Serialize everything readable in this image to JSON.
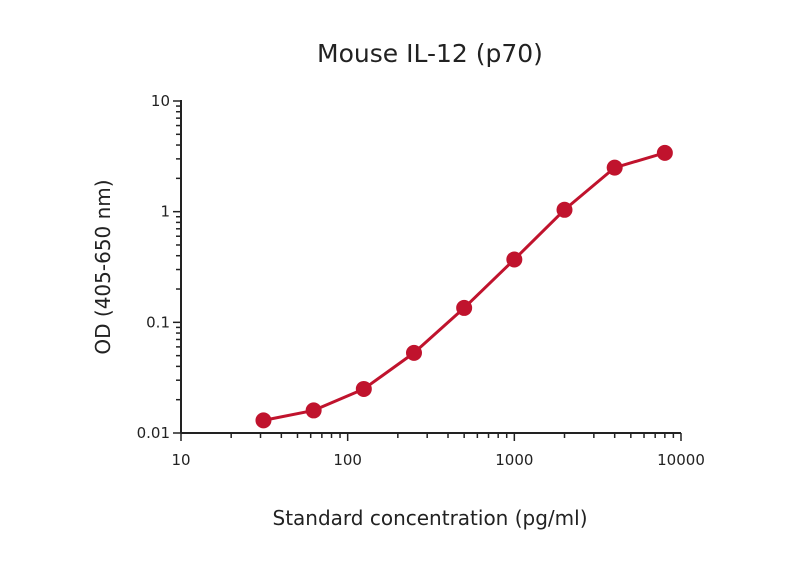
{
  "chart_data": {
    "type": "line",
    "title": "Mouse IL-12 (p70)",
    "xlabel": "Standard concentration (pg/ml)",
    "ylabel": "OD (405-650 nm)",
    "xscale": "log",
    "yscale": "log",
    "xlim": [
      10,
      10000
    ],
    "ylim": [
      0.01,
      10
    ],
    "x_tick_labels": [
      "10",
      "100",
      "1000",
      "10000"
    ],
    "y_tick_labels": [
      "0.01",
      "0.1",
      "1",
      "10"
    ],
    "grid": false,
    "legend": "none",
    "color": "#c0132d",
    "series": [
      {
        "x": [
          31.25,
          62.5,
          125,
          250,
          500,
          1000,
          2000,
          4000,
          8000
        ],
        "y": [
          0.013,
          0.016,
          0.025,
          0.053,
          0.135,
          0.37,
          1.04,
          2.5,
          3.4
        ]
      }
    ]
  }
}
